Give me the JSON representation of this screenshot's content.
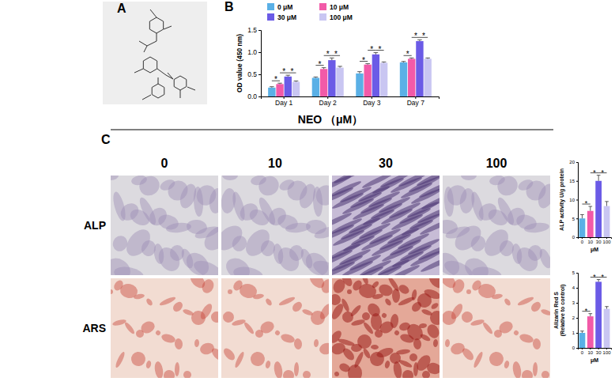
{
  "figure": {
    "panel_labels": [
      "A",
      "B",
      "C"
    ],
    "header": "NEO （μM）",
    "columns": [
      "0",
      "10",
      "30",
      "100"
    ],
    "rows": [
      "ALP",
      "ARS"
    ]
  },
  "chart_data": [
    {
      "type": "bar",
      "ylabel": "OD value (450 nm)",
      "categories": [
        "Day 1",
        "Day 2",
        "Day 3",
        "Day 7"
      ],
      "series": [
        {
          "name": "0 μM",
          "color": "#5ab0e6",
          "values": [
            0.2,
            0.42,
            0.52,
            0.77
          ],
          "errors": [
            0.02,
            0.02,
            0.04,
            0.02
          ]
        },
        {
          "name": "10 μM",
          "color": "#f25aa8",
          "values": [
            0.28,
            0.62,
            0.72,
            0.85
          ],
          "errors": [
            0.02,
            0.03,
            0.02,
            0.02
          ]
        },
        {
          "name": "30 μM",
          "color": "#6b5be6",
          "values": [
            0.45,
            0.82,
            0.95,
            1.25
          ],
          "errors": [
            0.03,
            0.05,
            0.04,
            0.03
          ]
        },
        {
          "name": "100 μM",
          "color": "#c9c6f2",
          "values": [
            0.33,
            0.65,
            0.76,
            0.85
          ],
          "errors": [
            0.02,
            0.03,
            0.02,
            0.02
          ]
        }
      ],
      "ylim": [
        0,
        1.5
      ],
      "yticks": [
        {
          "value": 0,
          "label": "0.0"
        },
        {
          "value": 0.5,
          "label": "0.5"
        },
        {
          "value": 1,
          "label": "1.0"
        },
        {
          "value": 1.5,
          "label": "1.5"
        }
      ],
      "legend": "top",
      "significance": [
        {
          "category": "Day 1",
          "from": "0 μM",
          "to": "10 μM",
          "label": "*"
        },
        {
          "category": "Day 1",
          "from": "10 μM",
          "to": "30 μM",
          "label": "*"
        },
        {
          "category": "Day 1",
          "from": "30 μM",
          "to": "100 μM",
          "label": "*"
        },
        {
          "category": "Day 2",
          "from": "0 μM",
          "to": "10 μM",
          "label": "*"
        },
        {
          "category": "Day 2",
          "from": "10 μM",
          "to": "30 μM",
          "label": "*"
        },
        {
          "category": "Day 2",
          "from": "30 μM",
          "to": "100 μM",
          "label": "*"
        },
        {
          "category": "Day 3",
          "from": "0 μM",
          "to": "10 μM",
          "label": "*"
        },
        {
          "category": "Day 3",
          "from": "10 μM",
          "to": "30 μM",
          "label": "*"
        },
        {
          "category": "Day 3",
          "from": "30 μM",
          "to": "100 μM",
          "label": "*"
        },
        {
          "category": "Day 7",
          "from": "0 μM",
          "to": "10 μM",
          "label": "*"
        },
        {
          "category": "Day 7",
          "from": "10 μM",
          "to": "30 μM",
          "label": "*"
        },
        {
          "category": "Day 7",
          "from": "30 μM",
          "to": "100 μM",
          "label": "*"
        }
      ]
    },
    {
      "type": "bar",
      "ylabel": "ALP activity U/g protein",
      "xlabel": "μM",
      "categories": [
        "0",
        "10",
        "30",
        "100"
      ],
      "values": [
        5,
        7,
        15,
        8.3
      ],
      "errors": [
        1,
        1.2,
        1.5,
        1.2
      ],
      "colors": [
        "#5ab0e6",
        "#f25aa8",
        "#6b5be6",
        "#c9c6f2"
      ],
      "ylim": [
        0,
        20
      ],
      "yticks": [
        0,
        5,
        10,
        15,
        20
      ],
      "significance": [
        {
          "from": "0",
          "to": "10",
          "label": "*"
        },
        {
          "from": "10",
          "to": "30",
          "label": "*"
        },
        {
          "from": "30",
          "to": "100",
          "label": "*"
        }
      ]
    },
    {
      "type": "bar",
      "ylabel": [
        "Alizarin Red S",
        "(Relative to control)"
      ],
      "xlabel": "μM",
      "categories": [
        "0",
        "10",
        "30",
        "100"
      ],
      "values": [
        1,
        2.1,
        4.4,
        2.6
      ],
      "errors": [
        0.12,
        0.18,
        0.15,
        0.15
      ],
      "colors": [
        "#5ab0e6",
        "#f25aa8",
        "#6b5be6",
        "#c9c6f2"
      ],
      "ylim": [
        0,
        5
      ],
      "yticks": [
        0,
        1,
        2,
        3,
        4,
        5
      ],
      "significance": [
        {
          "from": "0",
          "to": "10",
          "label": "*"
        },
        {
          "from": "10",
          "to": "30",
          "label": "*"
        },
        {
          "from": "30",
          "to": "100",
          "label": "*"
        }
      ]
    }
  ]
}
